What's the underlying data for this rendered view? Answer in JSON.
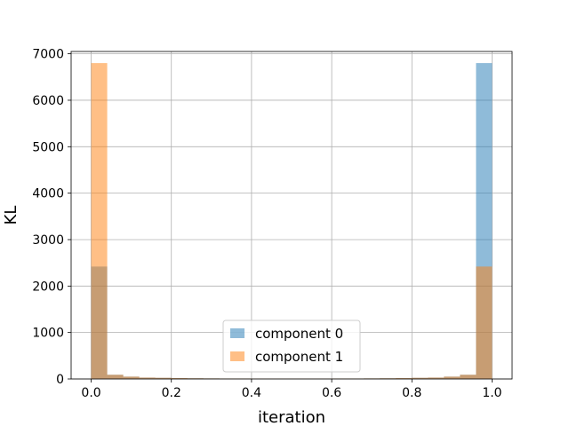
{
  "chart_data": {
    "type": "bar",
    "subtype": "histogram",
    "title": "",
    "xlabel": "iteration",
    "ylabel": "KL",
    "xlim": [
      -0.05,
      1.05
    ],
    "ylim": [
      0,
      7050
    ],
    "xticks": [
      0.0,
      0.2,
      0.4,
      0.6,
      0.8,
      1.0
    ],
    "xtick_labels": [
      "0.0",
      "0.2",
      "0.4",
      "0.6",
      "0.8",
      "1.0"
    ],
    "yticks": [
      0,
      1000,
      2000,
      3000,
      4000,
      5000,
      6000,
      7000
    ],
    "ytick_labels": [
      "0",
      "1000",
      "2000",
      "3000",
      "4000",
      "5000",
      "6000",
      "7000"
    ],
    "grid": true,
    "legend_position": "lower center",
    "bin_edges": [
      0.0,
      0.04,
      0.08,
      0.12,
      0.16,
      0.2,
      0.24,
      0.28,
      0.32,
      0.36,
      0.4,
      0.44,
      0.48,
      0.52,
      0.56,
      0.6,
      0.64,
      0.68,
      0.72,
      0.76,
      0.8,
      0.84,
      0.88,
      0.92,
      0.96,
      1.0
    ],
    "series": [
      {
        "name": "component 0",
        "color": "#1f77b4",
        "alpha": 0.5,
        "values": [
          2420,
          90,
          50,
          30,
          25,
          20,
          15,
          12,
          10,
          10,
          8,
          8,
          8,
          8,
          8,
          10,
          10,
          12,
          15,
          20,
          25,
          30,
          50,
          90,
          6800
        ]
      },
      {
        "name": "component 1",
        "color": "#ff7f0e",
        "alpha": 0.5,
        "values": [
          6800,
          90,
          50,
          30,
          25,
          20,
          15,
          12,
          10,
          10,
          8,
          8,
          8,
          8,
          8,
          10,
          10,
          12,
          15,
          20,
          25,
          30,
          50,
          90,
          2420
        ]
      }
    ]
  }
}
